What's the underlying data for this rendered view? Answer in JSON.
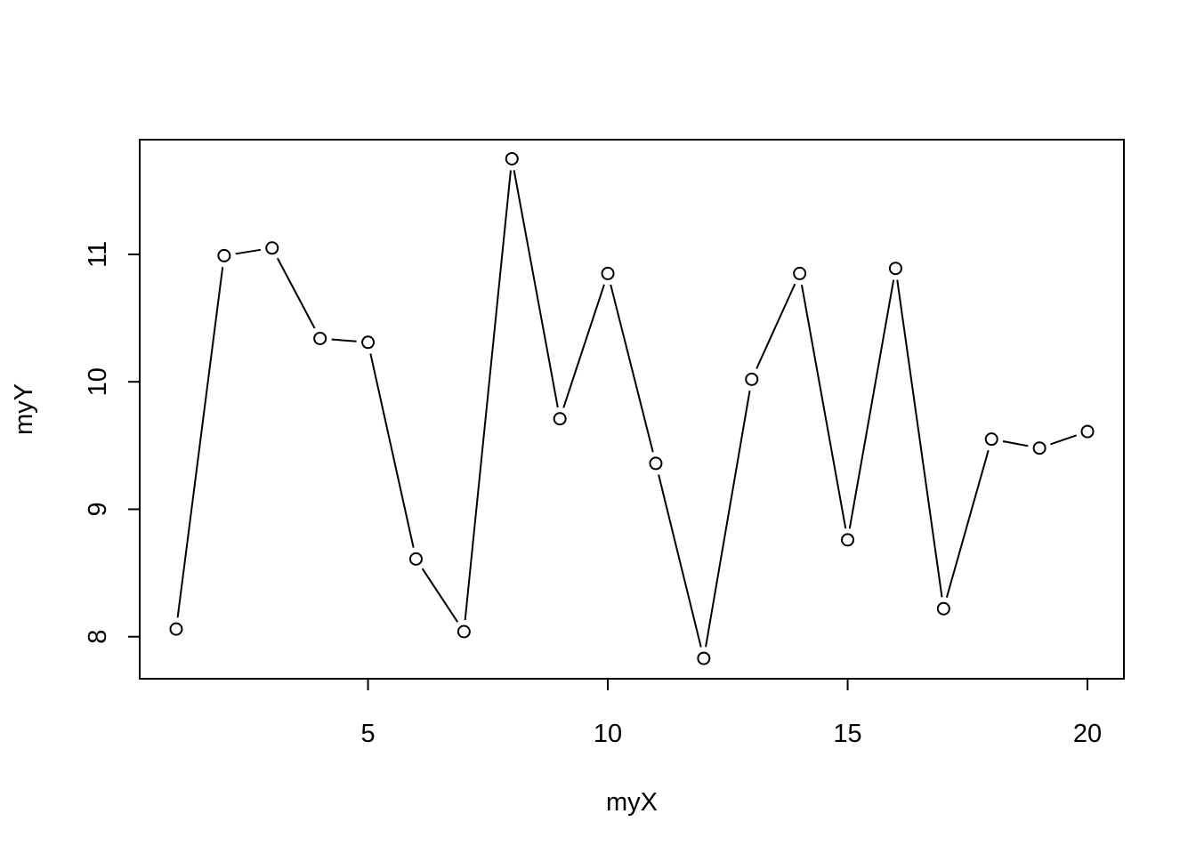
{
  "chart_data": {
    "type": "line",
    "title": "",
    "xlabel": "myX",
    "ylabel": "myY",
    "xlim": [
      0.24,
      20.76
    ],
    "ylim": [
      7.67,
      11.9
    ],
    "x_ticks": [
      5,
      10,
      15,
      20
    ],
    "y_ticks": [
      8,
      9,
      10,
      11
    ],
    "x_tick_labels": [
      "5",
      "10",
      "15",
      "20"
    ],
    "y_tick_labels": [
      "8",
      "9",
      "10",
      "11"
    ],
    "grid": false,
    "legend": "none",
    "style": "b",
    "point_shape": "open-circle",
    "line_color": "#000000",
    "series": [
      {
        "x": [
          1,
          2,
          3,
          4,
          5,
          6,
          7,
          8,
          9,
          10,
          11,
          12,
          13,
          14,
          15,
          16,
          17,
          18,
          19,
          20
        ],
        "values": [
          8.06,
          10.99,
          11.05,
          10.34,
          10.31,
          8.61,
          8.04,
          11.75,
          9.71,
          10.85,
          9.36,
          7.83,
          10.02,
          10.85,
          8.76,
          10.89,
          8.22,
          9.55,
          9.48,
          9.61
        ]
      }
    ]
  }
}
